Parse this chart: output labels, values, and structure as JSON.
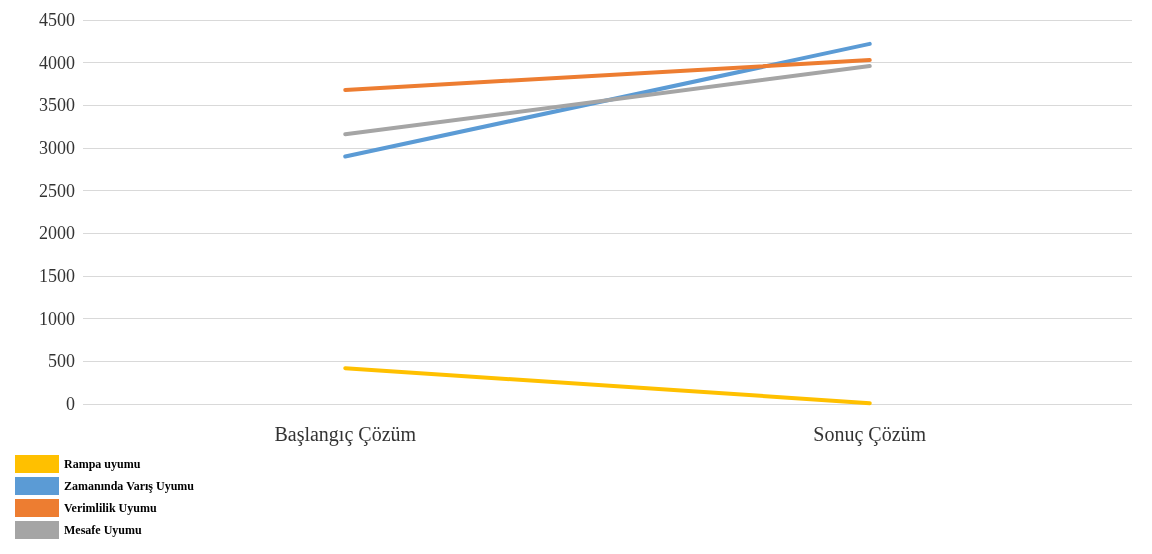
{
  "chart_data": {
    "type": "line",
    "categories": [
      "Başlangıç Çözüm",
      "Sonuç Çözüm"
    ],
    "series": [
      {
        "name": "Rampa uyumu",
        "color": "#ffc000",
        "values": [
          420,
          10
        ]
      },
      {
        "name": "Zamanında Varış Uyumu",
        "color": "#5b9bd5",
        "values": [
          2900,
          4220
        ]
      },
      {
        "name": "Verimlilik Uyumu",
        "color": "#ed7d31",
        "values": [
          3680,
          4030
        ]
      },
      {
        "name": "Mesafe Uyumu",
        "color": "#a5a5a5",
        "values": [
          3160,
          3960
        ]
      }
    ],
    "ylim": [
      0,
      4500
    ],
    "yticks": [
      0,
      500,
      1000,
      1500,
      2000,
      2500,
      3000,
      3500,
      4000,
      4500
    ],
    "grid": "y",
    "legend": "bottom left",
    "marker": "none",
    "line_style": "solid"
  }
}
